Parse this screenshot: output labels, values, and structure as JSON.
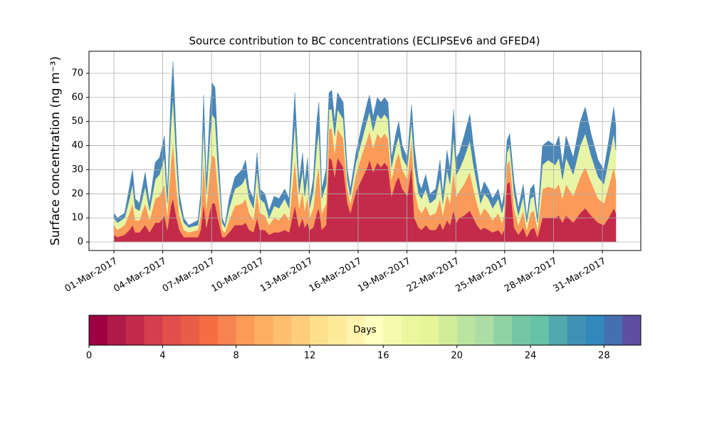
{
  "chart_data": {
    "type": "stacked_area",
    "title": "Source contribution to BC concentrations (ECLIPSEv6 and GFED4)",
    "y_label": "Surface concentration (ng m⁻³)",
    "x": [
      0,
      0.22,
      0.66,
      0.96,
      1.14,
      1.31,
      1.57,
      1.92,
      2.19,
      2.54,
      2.8,
      3.1,
      3.28,
      3.5,
      3.63,
      3.85,
      4.02,
      4.29,
      4.59,
      5.16,
      5.33,
      5.51,
      5.68,
      5.9,
      6.03,
      6.21,
      6.38,
      6.65,
      6.82,
      7.08,
      7.43,
      7.87,
      8.09,
      8.31,
      8.57,
      8.79,
      8.96,
      9.27,
      9.53,
      9.84,
      10.14,
      10.49,
      10.76,
      11.11,
      11.37,
      11.59,
      11.72,
      11.89,
      12.02,
      12.24,
      12.46,
      12.59,
      12.77,
      13.03,
      13.21,
      13.38,
      13.56,
      13.73,
      14.08,
      14.34,
      14.52,
      14.87,
      15.22,
      15.57,
      15.7,
      15.92,
      16.18,
      16.4,
      16.62,
      16.83,
      17.05,
      17.32,
      17.49,
      17.71,
      18.02,
      18.28,
      18.45,
      18.71,
      18.89,
      19.15,
      19.41,
      19.76,
      20.03,
      20.2,
      20.46,
      20.64,
      20.86,
      21.03,
      21.21,
      21.51,
      21.86,
      22.08,
      22.3,
      22.52,
      22.74,
      23.0,
      23.26,
      23.61,
      23.83,
      23.96,
      24.14,
      24.31,
      24.58,
      24.84,
      25.14,
      25.36,
      25.58,
      25.8,
      26.02,
      26.32,
      26.68,
      27.11,
      27.33,
      27.55,
      27.77,
      28.21,
      28.64,
      28.95,
      29.3,
      29.74,
      30.09,
      30.39,
      30.7,
      30.83
    ],
    "series": [
      {
        "color": "#c42a4a",
        "values": [
          3,
          2,
          3,
          5,
          7,
          4,
          4,
          7,
          4,
          8,
          8,
          11,
          5,
          15,
          18,
          10,
          5,
          2,
          2,
          2,
          5,
          16,
          6,
          13,
          16,
          16,
          10,
          2,
          2,
          4,
          7,
          7,
          8,
          5,
          4,
          10,
          5,
          5,
          3,
          4,
          4,
          5,
          4,
          15,
          6,
          10,
          6,
          8,
          5,
          6,
          12,
          14,
          5,
          7,
          35,
          34,
          27,
          35,
          31,
          16,
          12,
          21,
          26,
          31,
          34,
          29,
          33,
          31,
          33,
          31,
          19,
          25,
          27,
          22,
          19,
          32,
          10,
          6,
          5,
          7,
          5,
          5,
          8,
          5,
          9,
          7,
          13,
          8,
          10,
          11,
          13,
          10,
          7,
          5,
          6,
          5,
          4,
          5,
          3,
          5,
          24,
          25,
          6,
          3,
          6,
          2,
          5,
          6,
          2,
          10,
          10,
          10,
          11,
          8,
          11,
          8,
          12,
          14,
          11,
          8,
          7,
          10,
          14,
          12
        ]
      },
      {
        "color": "#fb9a59",
        "values": [
          4,
          3,
          4,
          7,
          9,
          5,
          5,
          9,
          5,
          10,
          11,
          13,
          6,
          18,
          23,
          12,
          6,
          3,
          2,
          3,
          6,
          18,
          8,
          17,
          20,
          19,
          12,
          3,
          2,
          5,
          8,
          9,
          10,
          7,
          5,
          11,
          7,
          6,
          4,
          6,
          5,
          7,
          5,
          19,
          8,
          11,
          7,
          11,
          5,
          8,
          15,
          17,
          7,
          9,
          12,
          13,
          10,
          12,
          12,
          6,
          4,
          7,
          10,
          12,
          12,
          10,
          12,
          12,
          12,
          12,
          7,
          9,
          10,
          8,
          7,
          11,
          12,
          8,
          7,
          8,
          6,
          7,
          10,
          6,
          11,
          9,
          17,
          11,
          11,
          13,
          16,
          12,
          9,
          6,
          8,
          7,
          5,
          7,
          5,
          6,
          8,
          9,
          8,
          4,
          7,
          3,
          7,
          7,
          3,
          12,
          13,
          12,
          13,
          10,
          13,
          11,
          15,
          17,
          14,
          10,
          9,
          13,
          17,
          14
        ]
      },
      {
        "color": "#e9f5a6",
        "values": [
          3,
          3,
          3,
          6,
          8,
          5,
          4,
          7,
          4,
          8,
          9,
          11,
          5,
          15,
          19,
          10,
          5,
          3,
          2,
          2,
          5,
          15,
          6,
          14,
          17,
          16,
          10,
          3,
          2,
          5,
          7,
          8,
          9,
          6,
          5,
          9,
          6,
          5,
          3,
          5,
          5,
          6,
          5,
          16,
          6,
          9,
          6,
          9,
          4,
          7,
          13,
          15,
          6,
          8,
          8,
          8,
          7,
          8,
          8,
          4,
          3,
          5,
          6,
          8,
          8,
          7,
          8,
          8,
          8,
          8,
          5,
          6,
          7,
          5,
          5,
          7,
          10,
          6,
          6,
          7,
          5,
          6,
          9,
          5,
          10,
          8,
          14,
          9,
          9,
          11,
          13,
          10,
          8,
          5,
          6,
          6,
          5,
          6,
          4,
          5,
          5,
          6,
          6,
          4,
          6,
          3,
          6,
          6,
          3,
          10,
          11,
          10,
          11,
          8,
          11,
          9,
          13,
          14,
          11,
          9,
          8,
          11,
          14,
          12
        ]
      },
      {
        "color": "#4a86b8",
        "values": [
          2,
          2,
          2,
          5,
          6,
          4,
          3,
          6,
          3,
          7,
          7,
          9,
          4,
          12,
          15,
          8,
          4,
          2,
          1,
          2,
          4,
          12,
          5,
          11,
          13,
          13,
          8,
          2,
          1,
          4,
          5,
          6,
          7,
          4,
          4,
          7,
          4,
          4,
          3,
          4,
          4,
          4,
          4,
          12,
          5,
          7,
          5,
          7,
          3,
          5,
          10,
          12,
          4,
          6,
          7,
          8,
          6,
          7,
          7,
          4,
          3,
          4,
          6,
          7,
          7,
          6,
          7,
          7,
          7,
          7,
          4,
          5,
          6,
          5,
          4,
          7,
          8,
          5,
          4,
          6,
          4,
          4,
          7,
          4,
          8,
          6,
          11,
          7,
          7,
          9,
          11,
          8,
          6,
          4,
          5,
          4,
          4,
          4,
          3,
          4,
          5,
          5,
          5,
          3,
          5,
          2,
          4,
          5,
          2,
          8,
          8,
          8,
          9,
          6,
          9,
          7,
          10,
          11,
          9,
          7,
          6,
          8,
          11,
          10
        ]
      }
    ],
    "xlim": [
      -1.53,
      32.36
    ],
    "xticks": [
      {
        "value": 0,
        "label": "01-Mar-2017"
      },
      {
        "value": 3,
        "label": "04-Mar-2017"
      },
      {
        "value": 6,
        "label": "07-Mar-2017"
      },
      {
        "value": 9,
        "label": "10-Mar-2017"
      },
      {
        "value": 12,
        "label": "13-Mar-2017"
      },
      {
        "value": 15,
        "label": "16-Mar-2017"
      },
      {
        "value": 18,
        "label": "19-Mar-2017"
      },
      {
        "value": 21,
        "label": "22-Mar-2017"
      },
      {
        "value": 24,
        "label": "25-Mar-2017"
      },
      {
        "value": 27,
        "label": "28-Mar-2017"
      },
      {
        "value": 30,
        "label": "31-Mar-2017"
      }
    ],
    "ylim": [
      -3.54,
      79.15
    ],
    "yticks": [
      0,
      10,
      20,
      30,
      40,
      50,
      60,
      70
    ],
    "grid": true,
    "colorbar": {
      "label": "Days",
      "lim": [
        0,
        30
      ],
      "ticks": [
        0,
        4,
        8,
        12,
        16,
        20,
        24,
        28
      ],
      "colors": [
        "#9e0142",
        "#b01a48",
        "#c2294a",
        "#d53e4f",
        "#e04f4a",
        "#e95d46",
        "#f46d43",
        "#f7844e",
        "#fa9b58",
        "#fdae61",
        "#fdbe70",
        "#fece7c",
        "#fee08b",
        "#feea9b",
        "#fff3ad",
        "#ffffbf",
        "#f5faae",
        "#eaf79e",
        "#e6f598",
        "#d1ed9c",
        "#bbe4a0",
        "#abdda4",
        "#8fd2a4",
        "#74c7a5",
        "#66c2a5",
        "#52a8ac",
        "#4191b4",
        "#3288bd",
        "#456fb0",
        "#5e4fa2"
      ]
    }
  }
}
